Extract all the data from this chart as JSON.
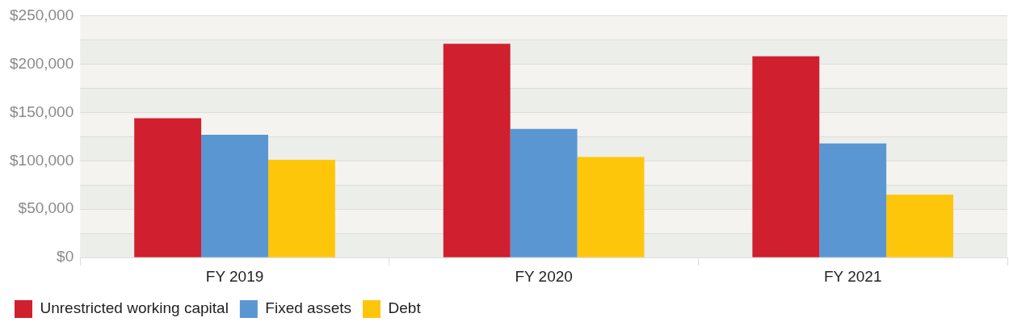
{
  "chart_data": {
    "type": "bar",
    "categories": [
      "FY 2019",
      "FY 2020",
      "FY 2021"
    ],
    "series": [
      {
        "name": "Unrestricted working capital",
        "color": "#d01f2e",
        "values": [
          144000,
          221000,
          208000
        ]
      },
      {
        "name": "Fixed assets",
        "color": "#5a96d2",
        "values": [
          127000,
          133000,
          118000
        ]
      },
      {
        "name": "Debt",
        "color": "#fec60b",
        "values": [
          101000,
          104000,
          65000
        ]
      }
    ],
    "ylim": [
      0,
      250000
    ],
    "yticks": [
      {
        "value": 0,
        "label": "$0"
      },
      {
        "value": 25000,
        "label": null
      },
      {
        "value": 50000,
        "label": "$50,000"
      },
      {
        "value": 75000,
        "label": null
      },
      {
        "value": 100000,
        "label": "$100,000"
      },
      {
        "value": 125000,
        "label": null
      },
      {
        "value": 150000,
        "label": "$150,000"
      },
      {
        "value": 175000,
        "label": null
      },
      {
        "value": 200000,
        "label": "$200,000"
      },
      {
        "value": 225000,
        "label": null
      },
      {
        "value": 250000,
        "label": "$250,000"
      }
    ],
    "grid": "y",
    "legend": "bottom"
  }
}
